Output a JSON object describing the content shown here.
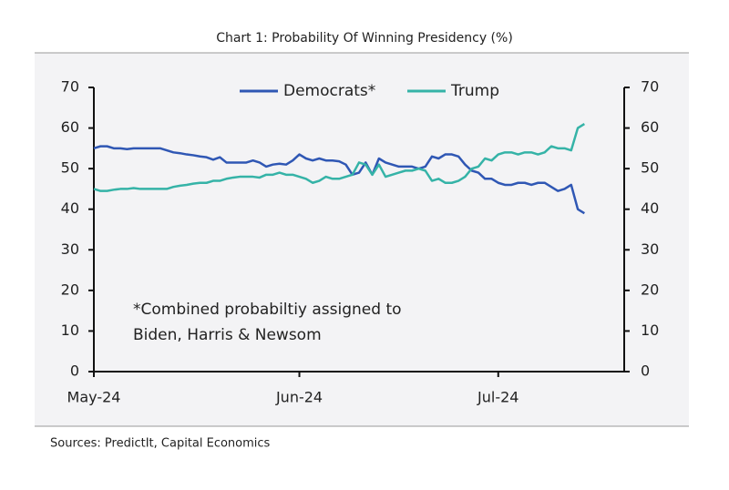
{
  "chart_data": {
    "type": "line",
    "title": "Chart 1: Probability Of Winning Presidency (%)",
    "source": "Sources: PredictIt, Capital Economics",
    "annotations": [
      "*Combined probabiltiy assigned to",
      "Biden, Harris & Newsom"
    ],
    "legend": "top",
    "x": [
      0,
      1,
      2,
      3,
      4,
      5,
      6,
      7,
      8,
      9,
      10,
      11,
      12,
      13,
      14,
      15,
      16,
      17,
      18,
      19,
      20,
      21,
      22,
      23,
      24,
      25,
      26,
      27,
      28,
      29,
      30,
      31,
      32,
      33,
      34,
      35,
      36,
      37,
      38,
      39,
      40,
      41,
      42,
      43,
      44,
      45,
      46,
      47,
      48,
      49,
      50,
      51,
      52,
      53,
      54,
      55,
      56,
      57,
      58,
      59,
      60,
      61,
      62,
      63,
      64,
      65,
      66,
      67,
      68,
      69,
      70,
      71,
      72,
      73,
      74
    ],
    "xlim": [
      0,
      80
    ],
    "xticks": [
      {
        "value": 0,
        "label": "May-24"
      },
      {
        "value": 31,
        "label": "Jun-24"
      },
      {
        "value": 61,
        "label": "Jul-24"
      }
    ],
    "ylim": [
      0,
      70
    ],
    "yticks": [
      0,
      10,
      20,
      30,
      40,
      50,
      60,
      70
    ],
    "y2lim": [
      0,
      70
    ],
    "y2ticks": [
      0,
      10,
      20,
      30,
      40,
      50,
      60,
      70
    ],
    "series": [
      {
        "name": "Democrats*",
        "color": "#2f57b4",
        "values": [
          55,
          55.5,
          55.5,
          55,
          55,
          54.8,
          55,
          55,
          55,
          55,
          55,
          54.5,
          54,
          53.8,
          53.5,
          53.3,
          53,
          52.8,
          52.2,
          52.8,
          51.5,
          51.5,
          51.5,
          51.5,
          52,
          51.5,
          50.5,
          51,
          51.2,
          51,
          52,
          53.5,
          52.5,
          52,
          52.5,
          52,
          52,
          51.8,
          51,
          48.5,
          49,
          51.5,
          48.5,
          52.5,
          51.5,
          51,
          50.5,
          50.5,
          50.5,
          50,
          50.5,
          53,
          52.5,
          53.5,
          53.5,
          53,
          51,
          49.5,
          49,
          47.5,
          47.5,
          46.5,
          46,
          46,
          46.5,
          46.5,
          46,
          46.5,
          46.5,
          45.5,
          44.5,
          45,
          46,
          40,
          39
        ]
      },
      {
        "name": "Trump",
        "color": "#35b3a7",
        "values": [
          45,
          44.5,
          44.5,
          44.8,
          45,
          45,
          45.2,
          45,
          45,
          45,
          45,
          45,
          45.5,
          45.8,
          46,
          46.3,
          46.5,
          46.5,
          47,
          47,
          47.5,
          47.8,
          48,
          48,
          48,
          47.8,
          48.5,
          48.5,
          49,
          48.5,
          48.5,
          48,
          47.5,
          46.5,
          47,
          48,
          47.5,
          47.5,
          48,
          48.5,
          51.5,
          51,
          48.5,
          51,
          48,
          48.5,
          49,
          49.5,
          49.5,
          50,
          49.5,
          47,
          47.5,
          46.5,
          46.5,
          47,
          48,
          50,
          50.5,
          52.5,
          52,
          53.5,
          54,
          54,
          53.5,
          54,
          54,
          53.5,
          54,
          55.5,
          55,
          55,
          54.5,
          60,
          61
        ]
      }
    ]
  }
}
